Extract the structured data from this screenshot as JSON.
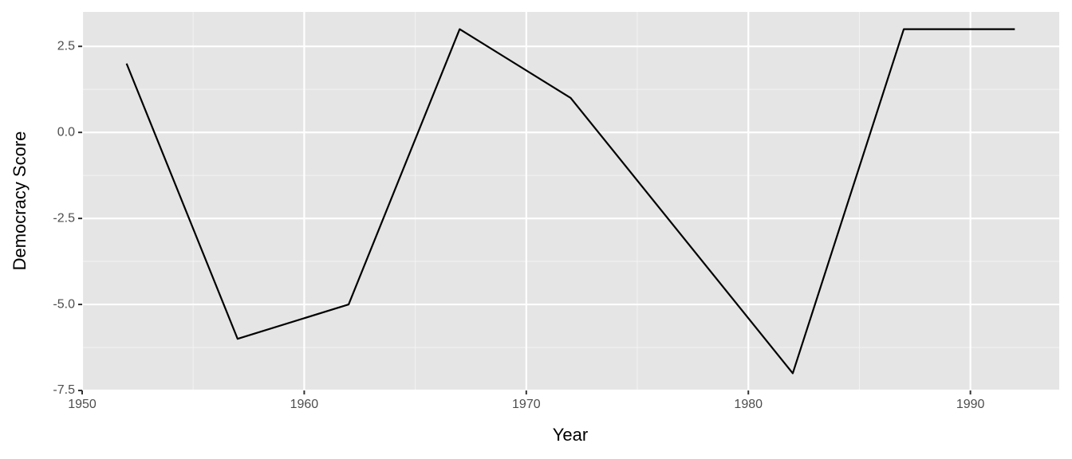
{
  "chart_data": {
    "type": "line",
    "x_label": "Year",
    "y_label": "Democracy Score",
    "x": [
      1952,
      1957,
      1962,
      1967,
      1972,
      1977,
      1982,
      1987,
      1992
    ],
    "series": [
      {
        "color": "#000000",
        "values": [
          2,
          -6,
          -5,
          3,
          1,
          -3,
          -7,
          3,
          3
        ]
      }
    ],
    "xlim": [
      1950,
      1994
    ],
    "xticks": [
      1950,
      1960,
      1970,
      1980,
      1990
    ],
    "ylim": [
      -7.5,
      3.5
    ],
    "yticks": [
      -7.5,
      {
        "value": -5,
        "label": "-5.0"
      },
      -2.5,
      {
        "value": 0,
        "label": "0.0"
      },
      2.5
    ],
    "grid": true
  }
}
